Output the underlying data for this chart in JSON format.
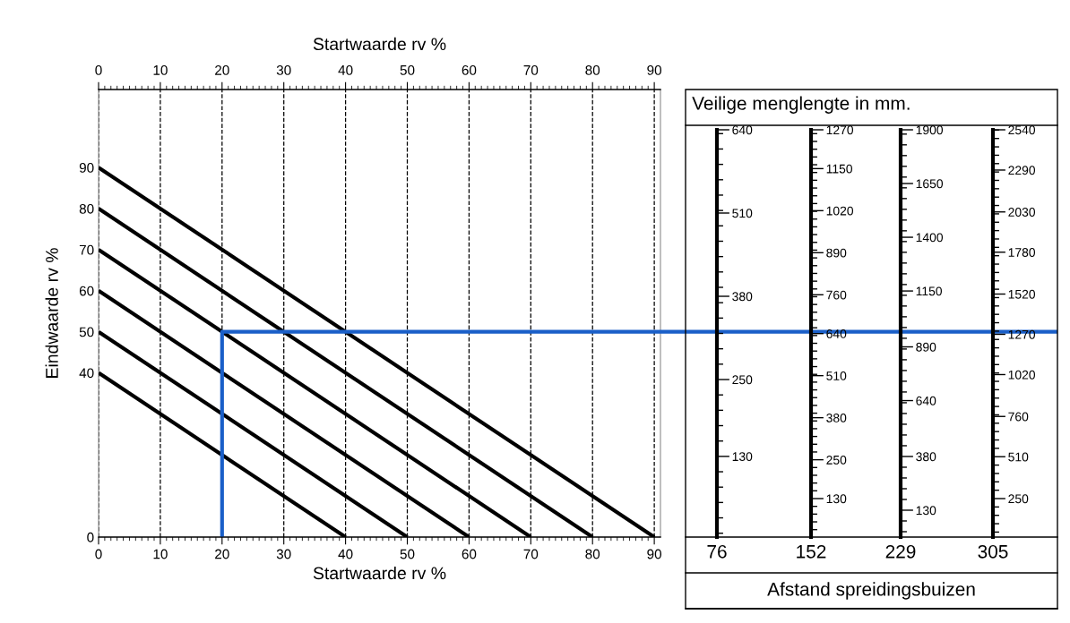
{
  "chart_data": [
    {
      "type": "line",
      "xlabel": "Startwaarde rv %",
      "x2label": "Startwaarde rv %",
      "ylabel": "Eindwaarde rv %",
      "ylim": [
        0,
        109
      ],
      "yticks": [
        0,
        40,
        50,
        60,
        70,
        80,
        90
      ],
      "xlim": [
        0,
        91
      ],
      "xticks": [
        0,
        10,
        20,
        30,
        40,
        50,
        60,
        70,
        80,
        90
      ],
      "x2lim": [
        0,
        91
      ],
      "x2ticks": [
        0,
        10,
        20,
        30,
        40,
        50,
        60,
        70,
        80,
        90
      ],
      "grid": "x",
      "line_style": "solid",
      "marker": "none",
      "series": [
        {
          "color": "#000000",
          "x": [
            0,
            40
          ],
          "values": [
            40,
            0
          ]
        },
        {
          "color": "#000000",
          "x": [
            0,
            50
          ],
          "values": [
            50,
            0
          ]
        },
        {
          "color": "#000000",
          "x": [
            0,
            60
          ],
          "values": [
            60,
            0
          ]
        },
        {
          "color": "#000000",
          "x": [
            0,
            70
          ],
          "values": [
            70,
            0
          ]
        },
        {
          "color": "#000000",
          "x": [
            0,
            80
          ],
          "values": [
            80,
            0
          ]
        },
        {
          "color": "#000000",
          "x": [
            0,
            90
          ],
          "values": [
            90,
            0
          ]
        },
        {
          "color": "#1a5fc8",
          "x": [
            20,
            20,
            91
          ],
          "values": [
            0,
            50,
            50
          ]
        }
      ]
    },
    {
      "type": "line",
      "title": "Veilige menglengte in mm.",
      "annotations": [
        "Afstand spreidingsbuizen"
      ],
      "categories": [
        "76"
      ],
      "ylim": [
        4,
        640
      ],
      "yticks": [
        130,
        250,
        380,
        510,
        640
      ]
    },
    {
      "type": "line",
      "categories": [
        "152"
      ],
      "ylim": [
        11,
        1270
      ],
      "yticks": [
        130,
        250,
        380,
        510,
        640,
        760,
        890,
        1020,
        1150,
        1270
      ]
    },
    {
      "type": "line",
      "categories": [
        "229"
      ],
      "ylim": [
        5,
        1900
      ],
      "yticks": [
        130,
        380,
        640,
        890,
        1150,
        1400,
        1650,
        1900
      ]
    },
    {
      "type": "line",
      "categories": [
        "305"
      ],
      "ylim": [
        11,
        2540
      ],
      "yticks": [
        250,
        510,
        760,
        1020,
        1270,
        1520,
        1780,
        2030,
        2290,
        2540
      ]
    }
  ]
}
